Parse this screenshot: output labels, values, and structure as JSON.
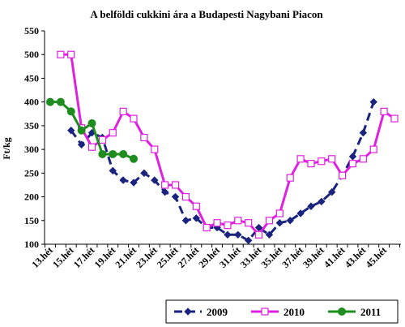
{
  "chart_data": {
    "type": "line",
    "title": "A belföldi cukkini ára a Budapesti Nagybani Piacon",
    "ylabel": "Ft/kg",
    "xlabel": "",
    "ylim": [
      100,
      550
    ],
    "yticks": [
      "100",
      "150",
      "200",
      "250",
      "300",
      "350",
      "400",
      "450",
      "500",
      "550"
    ],
    "x_week_range": [
      13,
      46
    ],
    "x_tick_labels": [
      "13.hét",
      "15.hét",
      "17.hét",
      "19.hét",
      "21.hét",
      "23.hét",
      "25.hét",
      "27.hét",
      "29.hét",
      "31.hét",
      "33.hét",
      "35.hét",
      "37.hét",
      "39.hét",
      "41.hét",
      "43.hét",
      "45.hét"
    ],
    "legend_position": "bottom",
    "grid": false,
    "series": [
      {
        "name": "2009",
        "color": "#1a237e",
        "line_style": "dashed",
        "marker": "diamond",
        "x": [
          15,
          16,
          17,
          18,
          19,
          20,
          21,
          22,
          23,
          24,
          25,
          26,
          27,
          28,
          29,
          30,
          31,
          32,
          33,
          34,
          35,
          36,
          37,
          38,
          39,
          40,
          41,
          42,
          43,
          44
        ],
        "y": [
          340,
          310,
          335,
          325,
          255,
          235,
          230,
          250,
          235,
          210,
          200,
          150,
          155,
          135,
          135,
          120,
          120,
          108,
          135,
          120,
          145,
          150,
          165,
          180,
          190,
          210,
          245,
          285,
          335,
          400
        ]
      },
      {
        "name": "2010",
        "color": "#e020e0",
        "line_style": "solid",
        "marker": "square-open",
        "x": [
          14,
          15,
          16,
          17,
          18,
          19,
          20,
          21,
          22,
          23,
          24,
          25,
          26,
          27,
          28,
          29,
          30,
          31,
          32,
          33,
          34,
          35,
          36,
          37,
          38,
          39,
          40,
          41,
          42,
          43,
          44,
          45,
          46
        ],
        "y": [
          500,
          500,
          345,
          305,
          320,
          335,
          380,
          365,
          325,
          300,
          225,
          225,
          200,
          180,
          135,
          145,
          140,
          150,
          145,
          120,
          150,
          165,
          240,
          280,
          270,
          275,
          280,
          245,
          270,
          280,
          300,
          380,
          365
        ]
      },
      {
        "name": "2011",
        "color": "#1e8c1e",
        "line_style": "solid",
        "marker": "circle",
        "x": [
          13,
          14,
          15,
          16,
          17,
          18,
          19,
          20,
          21
        ],
        "y": [
          400,
          400,
          380,
          340,
          355,
          290,
          290,
          290,
          280
        ]
      }
    ]
  }
}
